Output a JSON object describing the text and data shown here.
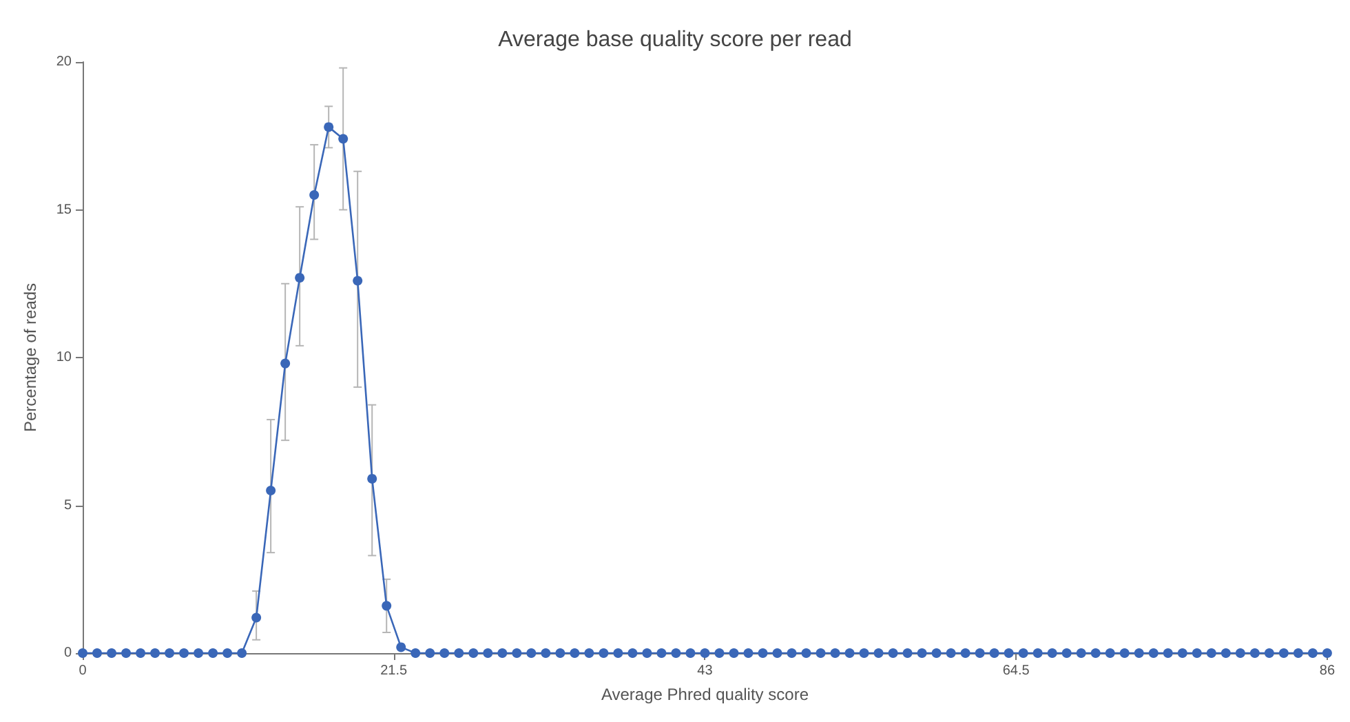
{
  "chart_data": {
    "type": "line",
    "title": "Average base quality score per read",
    "xlabel": "Average Phred quality score",
    "ylabel": "Percentage of reads",
    "x": [
      0,
      1,
      2,
      3,
      4,
      5,
      6,
      7,
      8,
      9,
      10,
      11,
      12,
      13,
      14,
      15,
      16,
      17,
      18,
      19,
      20,
      21,
      22,
      23,
      24,
      25,
      26,
      27,
      28,
      29,
      30,
      31,
      32,
      33,
      34,
      35,
      36,
      37,
      38,
      39,
      40,
      41,
      42,
      43,
      44,
      45,
      46,
      47,
      48,
      49,
      50,
      51,
      52,
      53,
      54,
      55,
      56,
      57,
      58,
      59,
      60,
      61,
      62,
      63,
      64,
      65,
      66,
      67,
      68,
      69,
      70,
      71,
      72,
      73,
      74,
      75,
      76,
      77,
      78,
      79,
      80,
      81,
      82,
      83,
      84,
      85,
      86
    ],
    "series": [
      {
        "color": "#3a67b8",
        "values": [
          0,
          0,
          0,
          0,
          0,
          0,
          0,
          0,
          0,
          0,
          0,
          0,
          1.2,
          5.5,
          9.8,
          12.7,
          15.5,
          17.8,
          17.4,
          12.6,
          5.9,
          1.6,
          0.2,
          0,
          0,
          0,
          0,
          0,
          0,
          0,
          0,
          0,
          0,
          0,
          0,
          0,
          0,
          0,
          0,
          0,
          0,
          0,
          0,
          0,
          0,
          0,
          0,
          0,
          0,
          0,
          0,
          0,
          0,
          0,
          0,
          0,
          0,
          0,
          0,
          0,
          0,
          0,
          0,
          0,
          0,
          0,
          0,
          0,
          0,
          0,
          0,
          0,
          0,
          0,
          0,
          0,
          0,
          0,
          0,
          0,
          0,
          0,
          0,
          0,
          0,
          0,
          0
        ],
        "errors": [
          null,
          null,
          null,
          null,
          null,
          null,
          null,
          null,
          null,
          null,
          null,
          null,
          [
            0.45,
            2.1
          ],
          [
            3.4,
            7.9
          ],
          [
            7.2,
            12.5
          ],
          [
            10.4,
            15.1
          ],
          [
            14.0,
            17.2
          ],
          [
            17.1,
            18.5
          ],
          [
            15.0,
            19.8
          ],
          [
            9.0,
            16.3
          ],
          [
            3.3,
            8.4
          ],
          [
            0.7,
            2.5
          ],
          null,
          null,
          null,
          null,
          null,
          null,
          null,
          null,
          null,
          null,
          null,
          null,
          null,
          null,
          null,
          null,
          null,
          null,
          null,
          null,
          null,
          null,
          null,
          null,
          null,
          null,
          null,
          null,
          null,
          null,
          null,
          null,
          null,
          null,
          null,
          null,
          null,
          null,
          null,
          null,
          null,
          null,
          null,
          null,
          null,
          null,
          null,
          null,
          null,
          null,
          null,
          null,
          null,
          null,
          null,
          null,
          null,
          null,
          null,
          null,
          null,
          null,
          null,
          null,
          null
        ]
      }
    ],
    "xlim": [
      0,
      86
    ],
    "xticks": [
      0,
      21.5,
      43,
      64.5,
      86
    ],
    "ylim": [
      0,
      20
    ],
    "yticks": [
      0,
      5,
      10,
      15,
      20
    ],
    "marker": "circle",
    "line_style": "solid",
    "grid": false
  }
}
